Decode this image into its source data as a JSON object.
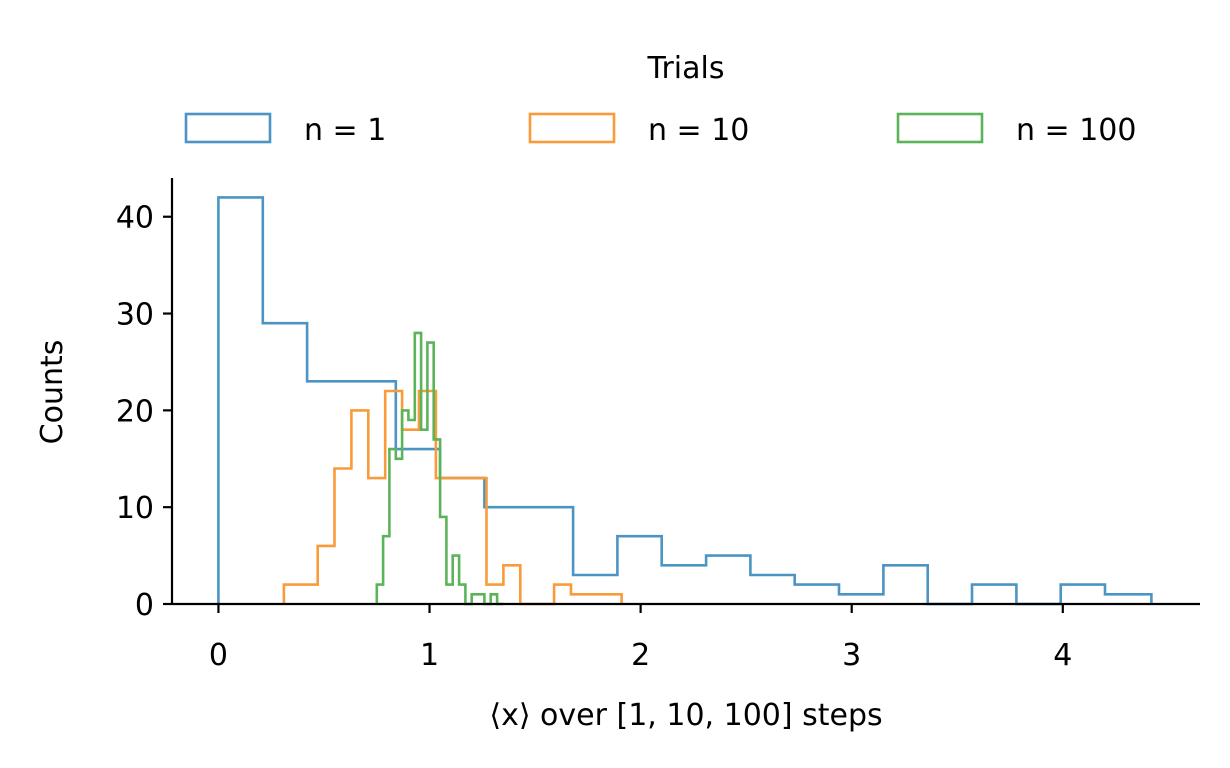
{
  "chart_data": {
    "type": "histogram",
    "xlabel": "⟨x⟩ over [1, 10, 100] steps",
    "ylabel": "Counts",
    "xlim": [
      -0.22,
      4.65
    ],
    "ylim": [
      0,
      44
    ],
    "xticks": [
      0,
      1,
      2,
      3,
      4
    ],
    "yticks": [
      0,
      10,
      20,
      30,
      40
    ],
    "grid": false,
    "legend": {
      "title": "Trials",
      "placement": "top-center",
      "entries": [
        "n = 1",
        "n = 10",
        "n = 100"
      ]
    },
    "series": [
      {
        "name": "n = 1",
        "color": "#4b94c3",
        "style": "step",
        "edges": [
          0.0,
          0.21,
          0.42,
          0.63,
          0.84,
          1.05,
          1.26,
          1.47,
          1.68,
          1.89,
          2.1,
          2.31,
          2.52,
          2.73,
          2.94,
          3.15,
          3.36,
          3.57,
          3.78,
          3.99,
          4.2,
          4.42
        ],
        "counts": [
          42,
          29,
          23,
          23,
          16,
          13,
          10,
          10,
          3,
          7,
          4,
          5,
          3,
          2,
          1,
          4,
          0,
          2,
          0,
          2,
          1
        ]
      },
      {
        "name": "n = 10",
        "color": "#f99b3a",
        "style": "step",
        "edges": [
          0.31,
          0.39,
          0.47,
          0.55,
          0.63,
          0.71,
          0.79,
          0.87,
          0.95,
          1.03,
          1.11,
          1.19,
          1.27,
          1.35,
          1.43,
          1.51,
          1.59,
          1.67,
          1.75,
          1.83,
          1.91
        ],
        "counts": [
          2,
          2,
          6,
          14,
          20,
          13,
          22,
          18,
          22,
          13,
          13,
          13,
          2,
          4,
          0,
          0,
          2,
          1,
          1,
          1
        ]
      },
      {
        "name": "n = 100",
        "color": "#5cb45a",
        "style": "step",
        "edges": [
          0.75,
          0.78,
          0.81,
          0.84,
          0.87,
          0.9,
          0.93,
          0.96,
          0.99,
          1.02,
          1.05,
          1.08,
          1.11,
          1.14,
          1.17,
          1.2,
          1.23,
          1.26,
          1.29,
          1.32,
          1.35
        ],
        "counts": [
          2,
          7,
          16,
          15,
          20,
          19,
          28,
          18,
          27,
          17,
          9,
          2,
          5,
          2,
          0,
          1,
          1,
          0,
          1,
          0
        ]
      }
    ]
  }
}
